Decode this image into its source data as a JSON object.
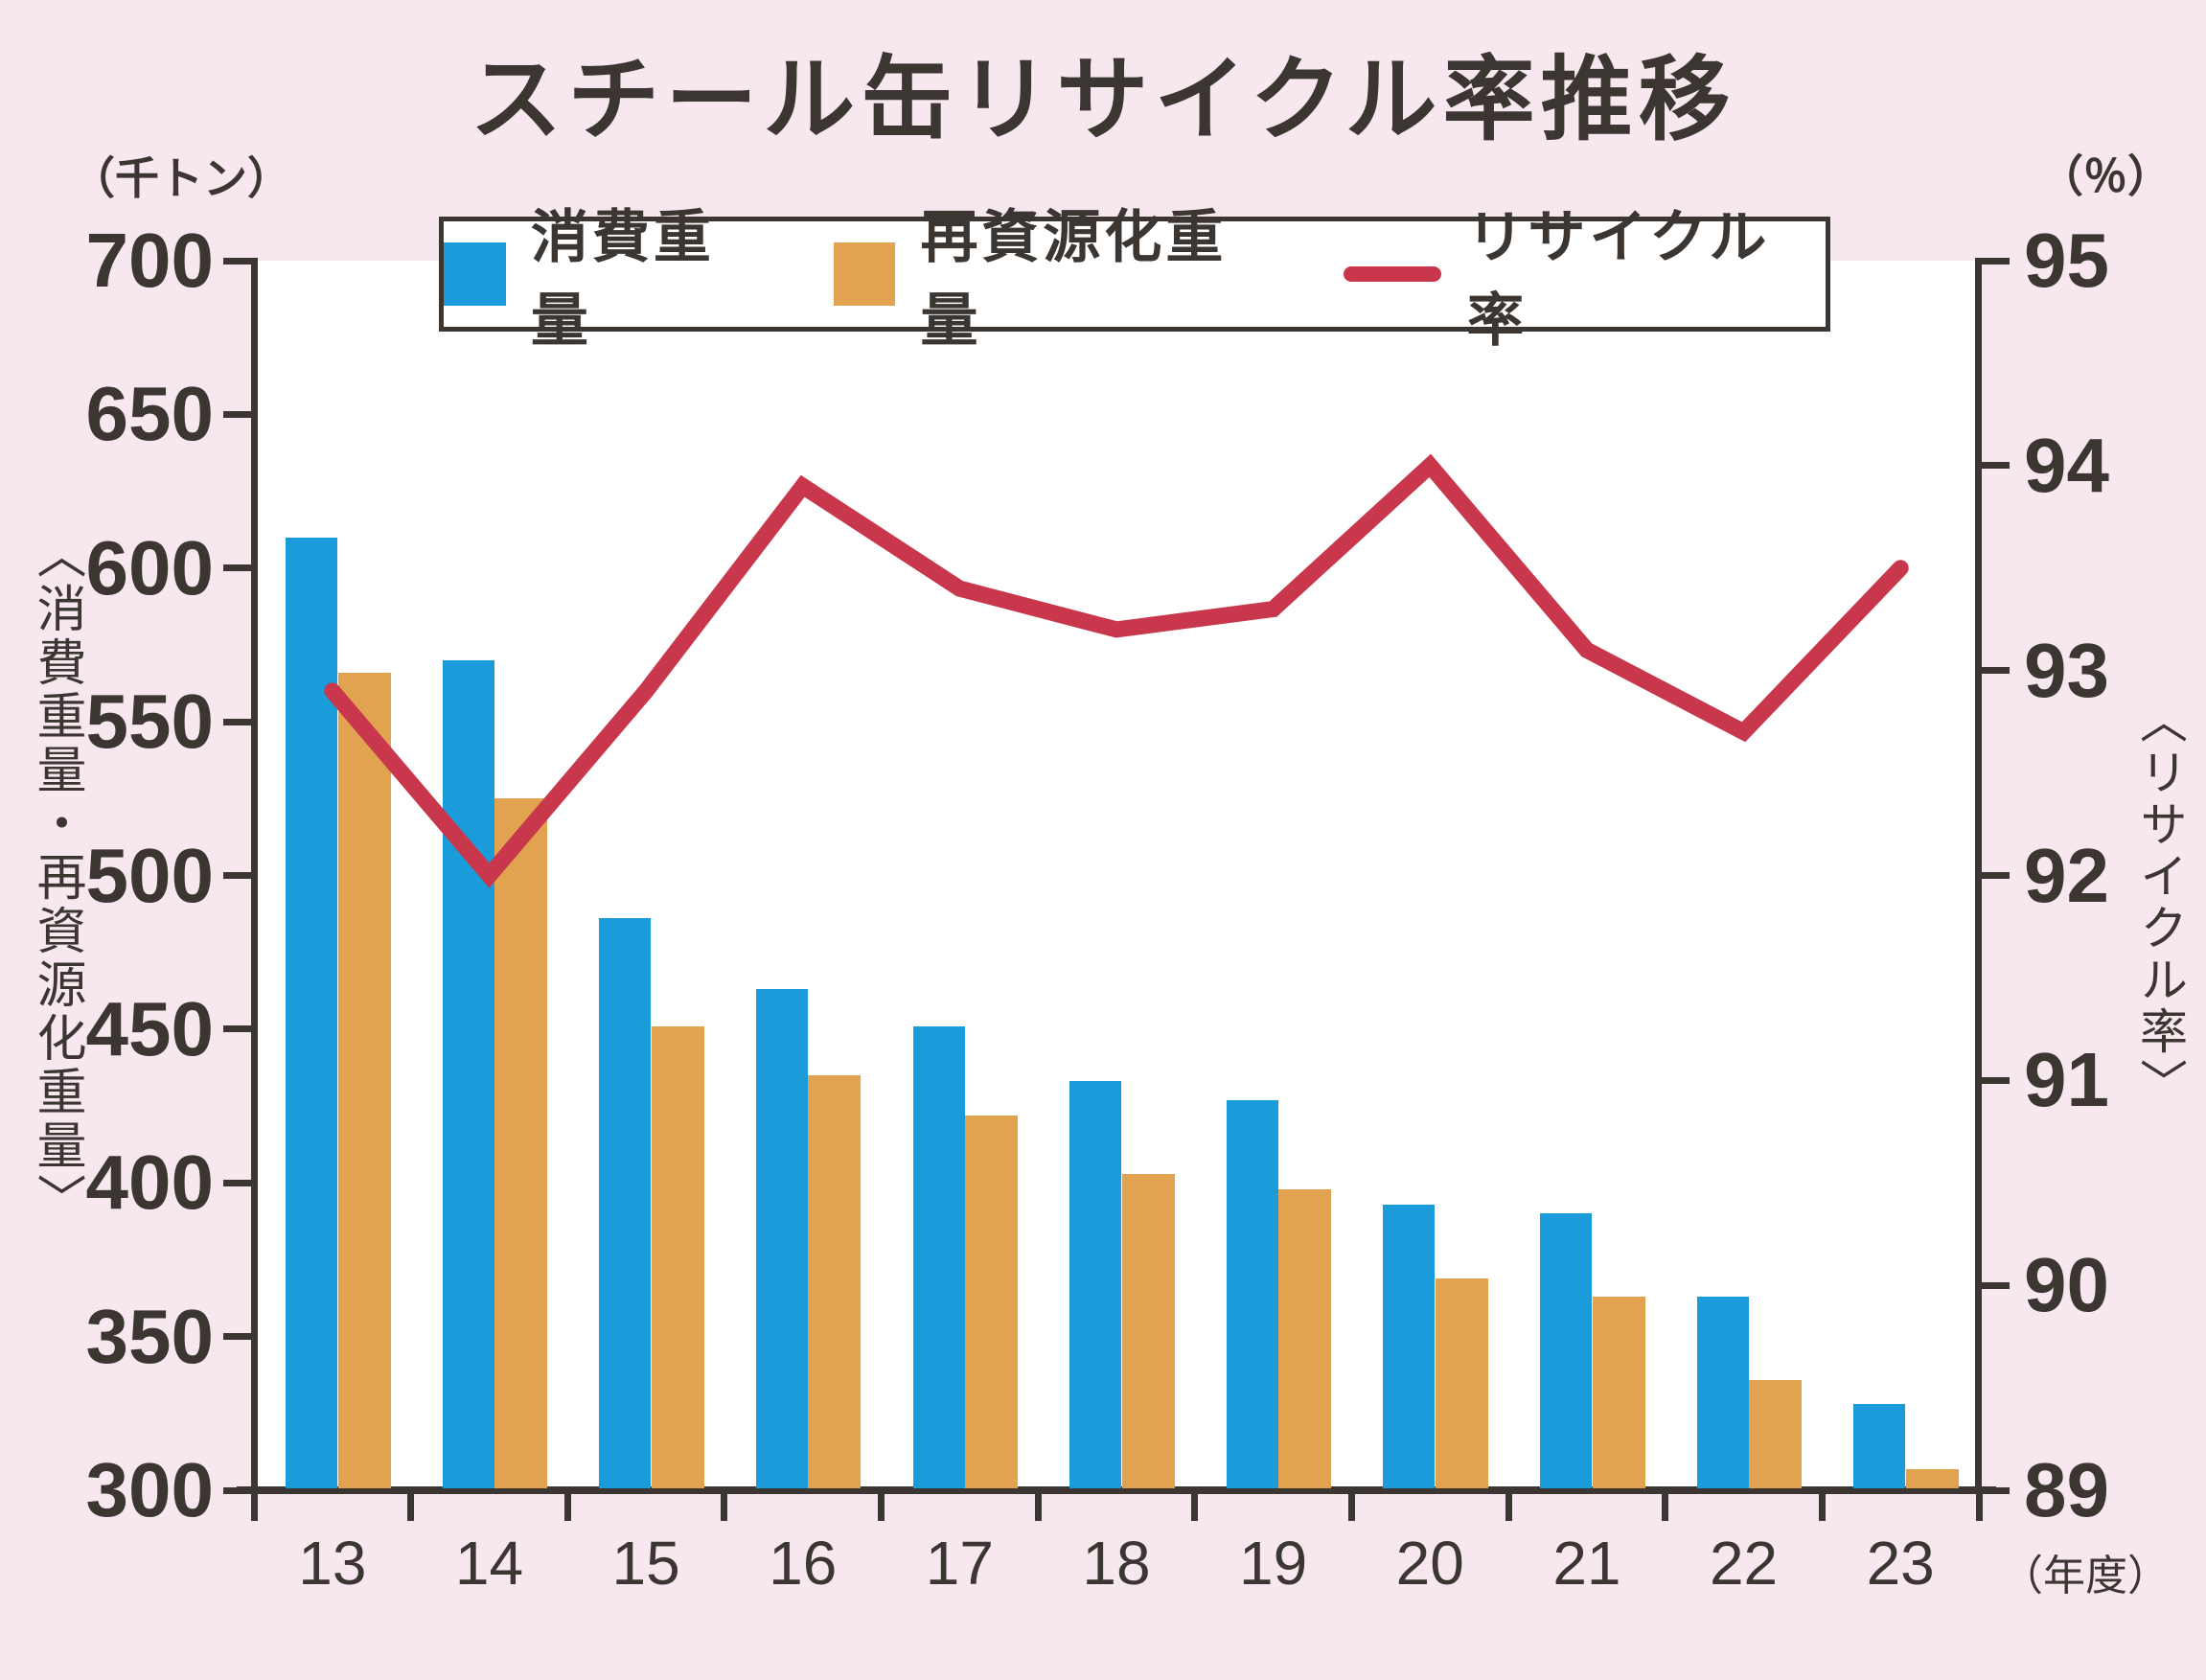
{
  "title": "スチール缶リサイクル率推移",
  "colors": {
    "background": "#F7E7EF",
    "plot_background": "#FFFFFF",
    "axis": "#3B3632",
    "consumption_bar": "#1B9CDA",
    "recycled_bar": "#E2A351",
    "rate_line": "#C8374B"
  },
  "left_axis": {
    "unit": "（千トン）",
    "title": "〈消費重量・再資源化重量〉",
    "min": 300,
    "max": 700,
    "tick_step": 50,
    "ticks": [
      700,
      650,
      600,
      550,
      500,
      450,
      400,
      350,
      300
    ]
  },
  "right_axis": {
    "unit": "（％）",
    "title": "〈リサイクル率〉",
    "min": 89,
    "max": 95,
    "tick_step": 1,
    "ticks": [
      95,
      94,
      93,
      92,
      91,
      90,
      89
    ]
  },
  "x_axis": {
    "unit": "（年度）",
    "categories": [
      "13",
      "14",
      "15",
      "16",
      "17",
      "18",
      "19",
      "20",
      "21",
      "22",
      "23"
    ]
  },
  "legend": {
    "items": [
      {
        "key": "consumption",
        "label": "消費重量",
        "marker": "bar",
        "color": "#1B9CDA"
      },
      {
        "key": "recycled",
        "label": "再資源化重量",
        "marker": "bar",
        "color": "#E2A351"
      },
      {
        "key": "rate",
        "label": "リサイクル率",
        "marker": "line",
        "color": "#C8374B"
      }
    ]
  },
  "chart_data": {
    "type": "bar+line",
    "title": "スチール缶リサイクル率推移",
    "categories": [
      "13",
      "14",
      "15",
      "16",
      "17",
      "18",
      "19",
      "20",
      "21",
      "22",
      "23"
    ],
    "series": [
      {
        "name": "消費重量",
        "type": "bar",
        "axis": "left",
        "unit": "千トン",
        "color": "#1B9CDA",
        "values": [
          610,
          570,
          486,
          463,
          451,
          433,
          427,
          393,
          390,
          363,
          328
        ]
      },
      {
        "name": "再資源化重量",
        "type": "bar",
        "axis": "left",
        "unit": "千トン",
        "color": "#E2A351",
        "values": [
          566,
          525,
          451,
          435,
          422,
          403,
          398,
          369,
          363,
          336,
          307
        ]
      },
      {
        "name": "リサイクル率",
        "type": "line",
        "axis": "right",
        "unit": "％",
        "color": "#C8374B",
        "values": [
          92.9,
          92.0,
          92.9,
          93.9,
          93.4,
          93.2,
          93.3,
          94.0,
          93.1,
          92.7,
          93.5
        ]
      }
    ],
    "left_ylim": [
      300,
      700
    ],
    "right_ylim": [
      89,
      95
    ],
    "xlabel": "年度",
    "grid": false,
    "legend_position": "top"
  }
}
